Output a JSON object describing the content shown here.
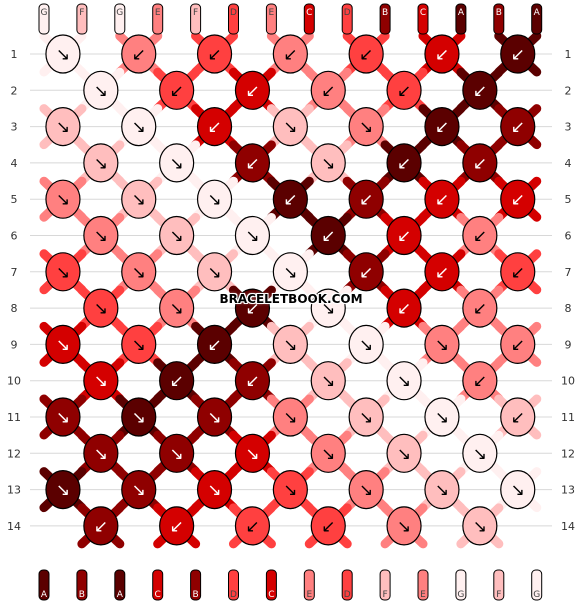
{
  "watermark": "BRACELETBOOK.COM",
  "palette": {
    "A": "#5b0000",
    "B": "#8f0000",
    "C": "#d40000",
    "D": "#ff4040",
    "E": "#ff8080",
    "F": "#ffbebe",
    "G": "#fff0f0"
  },
  "top_strands": [
    "G",
    "F",
    "G",
    "E",
    "F",
    "D",
    "E",
    "C",
    "D",
    "B",
    "C",
    "A",
    "B",
    "A"
  ],
  "bottom_strands": [
    "A",
    "B",
    "A",
    "C",
    "B",
    "D",
    "C",
    "E",
    "D",
    "F",
    "E",
    "G",
    "F",
    "G"
  ],
  "row_labels": [
    "1",
    "2",
    "3",
    "4",
    "5",
    "6",
    "7",
    "8",
    "9",
    "10",
    "11",
    "12",
    "13",
    "14"
  ],
  "knots": [
    [
      {
        "c": "G",
        "d": "↘"
      },
      {
        "c": "E",
        "d": "↙"
      },
      {
        "c": "D",
        "d": "↙"
      },
      {
        "c": "E",
        "d": "↙"
      },
      {
        "c": "D",
        "d": "↙"
      },
      {
        "c": "C",
        "d": "↙"
      },
      {
        "c": "A",
        "d": "↙"
      }
    ],
    [
      {
        "c": "G",
        "d": "↘"
      },
      {
        "c": "D",
        "d": "↙"
      },
      {
        "c": "C",
        "d": "↙"
      },
      {
        "c": "E",
        "d": "↙"
      },
      {
        "c": "D",
        "d": "↙"
      },
      {
        "c": "A",
        "d": "↙"
      }
    ],
    [
      {
        "c": "F",
        "d": "↘"
      },
      {
        "c": "G",
        "d": "↘"
      },
      {
        "c": "C",
        "d": "↙"
      },
      {
        "c": "F",
        "d": "↘"
      },
      {
        "c": "E",
        "d": "↘"
      },
      {
        "c": "A",
        "d": "↙"
      },
      {
        "c": "B",
        "d": "↙"
      }
    ],
    [
      {
        "c": "F",
        "d": "↘"
      },
      {
        "c": "G",
        "d": "↘"
      },
      {
        "c": "B",
        "d": "↙"
      },
      {
        "c": "F",
        "d": "↘"
      },
      {
        "c": "A",
        "d": "↙"
      },
      {
        "c": "B",
        "d": "↙"
      }
    ],
    [
      {
        "c": "E",
        "d": "↘"
      },
      {
        "c": "F",
        "d": "↘"
      },
      {
        "c": "G",
        "d": "↘"
      },
      {
        "c": "A",
        "d": "↙"
      },
      {
        "c": "B",
        "d": "↙"
      },
      {
        "c": "C",
        "d": "↙"
      },
      {
        "c": "C",
        "d": "↙"
      }
    ],
    [
      {
        "c": "E",
        "d": "↘"
      },
      {
        "c": "F",
        "d": "↘"
      },
      {
        "c": "G",
        "d": "↘"
      },
      {
        "c": "A",
        "d": "↙"
      },
      {
        "c": "C",
        "d": "↙"
      },
      {
        "c": "E",
        "d": "↙"
      }
    ],
    [
      {
        "c": "D",
        "d": "↘"
      },
      {
        "c": "E",
        "d": "↘"
      },
      {
        "c": "F",
        "d": "↘"
      },
      {
        "c": "G",
        "d": "↘"
      },
      {
        "c": "B",
        "d": "↙"
      },
      {
        "c": "C",
        "d": "↙"
      },
      {
        "c": "D",
        "d": "↙"
      }
    ],
    [
      {
        "c": "D",
        "d": "↘"
      },
      {
        "c": "E",
        "d": "↘"
      },
      {
        "c": "A",
        "d": "↙"
      },
      {
        "c": "G",
        "d": "↘"
      },
      {
        "c": "C",
        "d": "↙"
      },
      {
        "c": "E",
        "d": "↙"
      }
    ],
    [
      {
        "c": "C",
        "d": "↘"
      },
      {
        "c": "D",
        "d": "↘"
      },
      {
        "c": "A",
        "d": "↙"
      },
      {
        "c": "F",
        "d": "↘"
      },
      {
        "c": "G",
        "d": "↘"
      },
      {
        "c": "E",
        "d": "↘"
      },
      {
        "c": "E",
        "d": "↙"
      }
    ],
    [
      {
        "c": "C",
        "d": "↘"
      },
      {
        "c": "A",
        "d": "↙"
      },
      {
        "c": "B",
        "d": "↙"
      },
      {
        "c": "F",
        "d": "↘"
      },
      {
        "c": "G",
        "d": "↘"
      },
      {
        "c": "E",
        "d": "↙"
      }
    ],
    [
      {
        "c": "B",
        "d": "↘"
      },
      {
        "c": "A",
        "d": "↘"
      },
      {
        "c": "B",
        "d": "↘"
      },
      {
        "c": "E",
        "d": "↘"
      },
      {
        "c": "F",
        "d": "↘"
      },
      {
        "c": "G",
        "d": "↘"
      },
      {
        "c": "F",
        "d": "↙"
      }
    ],
    [
      {
        "c": "B",
        "d": "↘"
      },
      {
        "c": "B",
        "d": "↘"
      },
      {
        "c": "C",
        "d": "↘"
      },
      {
        "c": "E",
        "d": "↘"
      },
      {
        "c": "F",
        "d": "↘"
      },
      {
        "c": "G",
        "d": "↘"
      }
    ],
    [
      {
        "c": "A",
        "d": "↘"
      },
      {
        "c": "B",
        "d": "↘"
      },
      {
        "c": "C",
        "d": "↘"
      },
      {
        "c": "D",
        "d": "↘"
      },
      {
        "c": "E",
        "d": "↘"
      },
      {
        "c": "F",
        "d": "↘"
      },
      {
        "c": "G",
        "d": "↘"
      }
    ],
    [
      {
        "c": "B",
        "d": "↙"
      },
      {
        "c": "C",
        "d": "↙"
      },
      {
        "c": "D",
        "d": "↙"
      },
      {
        "c": "D",
        "d": "↙"
      },
      {
        "c": "E",
        "d": "↘"
      },
      {
        "c": "F",
        "d": "↘"
      }
    ]
  ]
}
